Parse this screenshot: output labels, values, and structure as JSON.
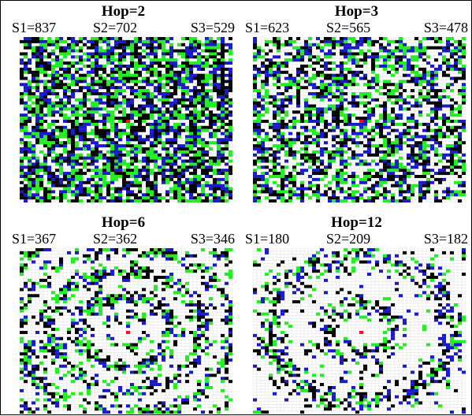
{
  "colors": {
    "empty": "#ffffff",
    "gridline": "#d8d8d8",
    "black": "#000000",
    "green": "#22ee22",
    "blue": "#1a1acc",
    "source": "#ee1111"
  },
  "grid_size": 54,
  "panels": [
    {
      "title": "Hop=2",
      "s1": "S1=837",
      "s2": "S2=702",
      "s3": "S3=529",
      "hop": 2
    },
    {
      "title": "Hop=3",
      "s1": "S1=623",
      "s2": "S2=565",
      "s3": "S3=478",
      "hop": 3
    },
    {
      "title": "Hop=6",
      "s1": "S1=367",
      "s2": "S2=362",
      "s3": "S3=346",
      "hop": 6
    },
    {
      "title": "Hop=12",
      "s1": "S1=180",
      "s2": "S2=209",
      "s3": "S3=182",
      "hop": 12
    }
  ]
}
